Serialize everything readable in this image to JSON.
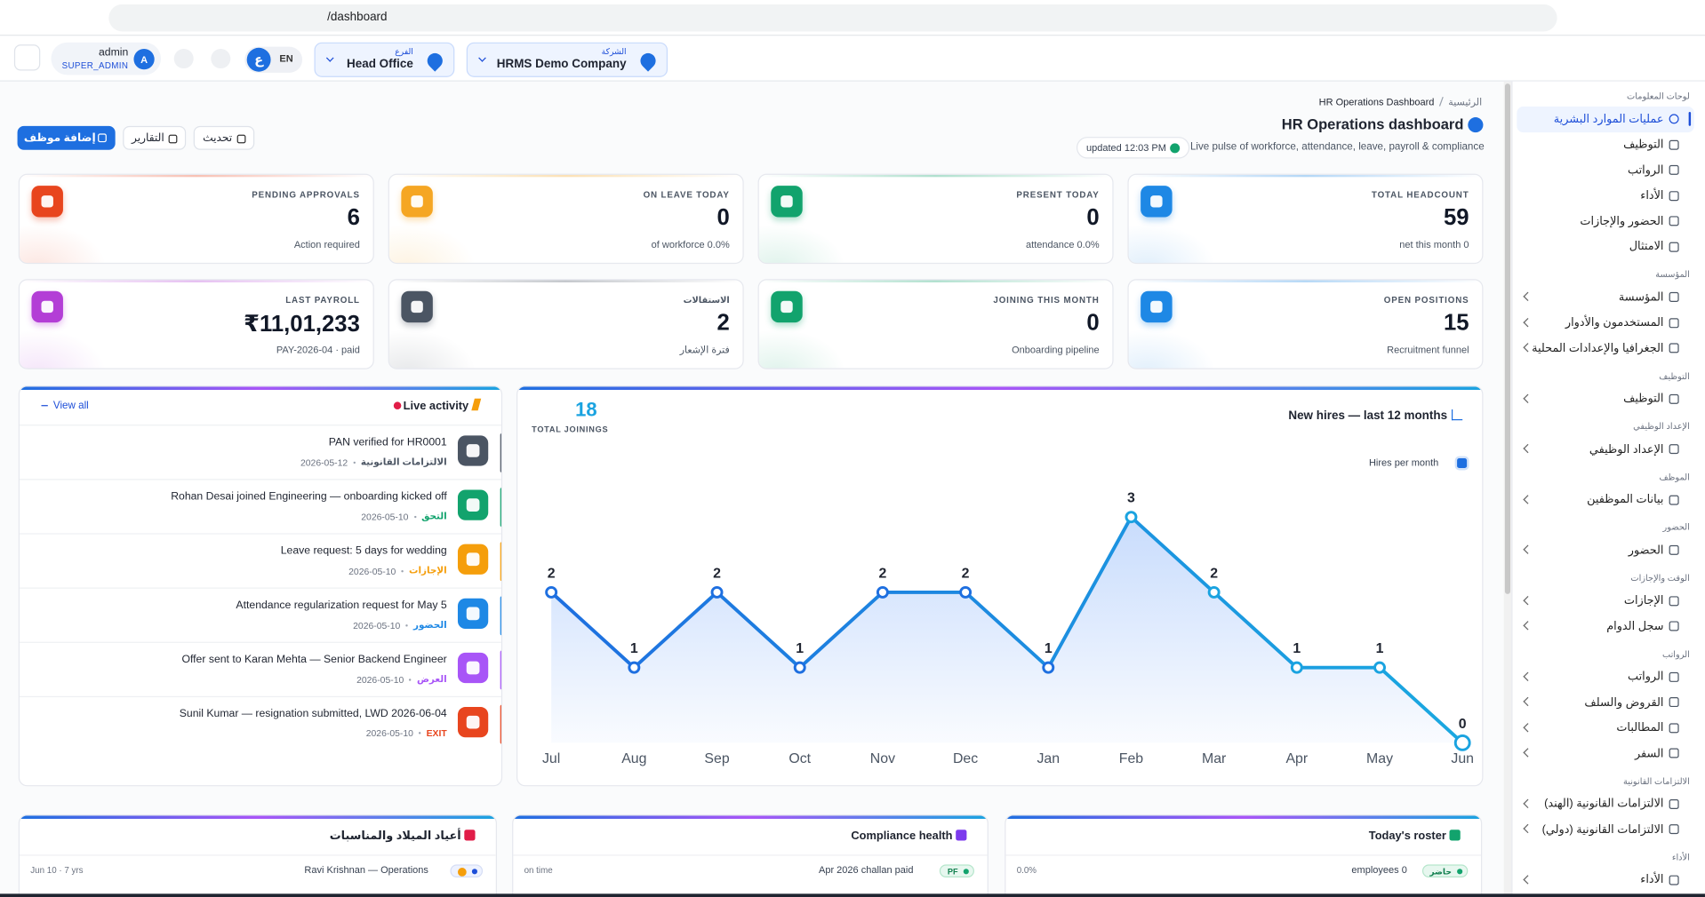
{
  "browser": {
    "url": "/dashboard"
  },
  "header": {
    "user": "admin",
    "role": "SUPER_ADMIN",
    "avatar": "A",
    "lang_ar": "ع",
    "lang_en": "EN",
    "branch": {
      "label": "الفرع",
      "value": "Head Office"
    },
    "company": {
      "label": "الشركة",
      "value": "HRMS Demo Company"
    }
  },
  "page": {
    "breadcrumb": [
      "الرئيسية",
      "HR Operations Dashboard"
    ],
    "title": "HR Operations dashboard",
    "subtitle": "Live pulse of workforce, attendance, leave, payroll & compliance.",
    "updated": "updated 12:03 PM",
    "actions": [
      "إضافة موظف",
      "التقارير",
      "تحديث"
    ]
  },
  "kpis": [
    {
      "label": "TOTAL HEADCOUNT",
      "value": "59",
      "note": "net this month 0",
      "color": "#1e88e5"
    },
    {
      "label": "PRESENT TODAY",
      "value": "0",
      "note": "attendance 0.0%",
      "color": "#12a36d"
    },
    {
      "label": "ON LEAVE TODAY",
      "value": "0",
      "note": "of workforce 0.0%",
      "color": "#f5a623"
    },
    {
      "label": "PENDING APPROVALS",
      "value": "6",
      "note": "Action required",
      "color": "#e8451e"
    },
    {
      "label": "OPEN POSITIONS",
      "value": "15",
      "note": "Recruitment funnel",
      "color": "#1e88e5"
    },
    {
      "label": "JOINING THIS MONTH",
      "value": "0",
      "note": "Onboarding pipeline",
      "color": "#12a36d"
    },
    {
      "label": "الاستقالات",
      "value": "2",
      "note": "فترة الإشعار",
      "color": "#4b5563"
    },
    {
      "label": "LAST PAYROLL",
      "value": "₹11,01,233",
      "note": "PAY-2026-04 · paid",
      "color": "#b33ed6"
    }
  ],
  "activity": {
    "title": "Live activity",
    "view_all": "View all",
    "items": [
      {
        "title": "PAN verified for HR0001",
        "date": "2026-05-12",
        "tag": "الالتزامات القانونية",
        "color": "#4b5563"
      },
      {
        "title": "Rohan Desai joined Engineering — onboarding kicked off",
        "date": "2026-05-10",
        "tag": "التحق",
        "color": "#12a36d"
      },
      {
        "title": "Leave request: 5 days for wedding",
        "date": "2026-05-10",
        "tag": "الإجازات",
        "color": "#f59e0b"
      },
      {
        "title": "Attendance regularization request for May 5",
        "date": "2026-05-10",
        "tag": "الحضور",
        "color": "#1e88e5"
      },
      {
        "title": "Offer sent to Karan Mehta — Senior Backend Engineer",
        "date": "2026-05-10",
        "tag": "العرض",
        "color": "#a855f7"
      },
      {
        "title": "Sunil Kumar — resignation submitted, LWD 2026-06-04",
        "date": "2026-05-10",
        "tag": "EXIT",
        "color": "#e8451e"
      }
    ]
  },
  "chart_data": {
    "type": "line",
    "title": "New hires — last 12 months",
    "kpi_value": "18",
    "kpi_label": "TOTAL JOININGS",
    "categories": [
      "Jul",
      "Aug",
      "Sep",
      "Oct",
      "Nov",
      "Dec",
      "Jan",
      "Feb",
      "Mar",
      "Apr",
      "May",
      "Jun"
    ],
    "series": [
      {
        "name": "Hires per month",
        "color": "#1e6fe0",
        "values": [
          2,
          1,
          2,
          1,
          2,
          2,
          1,
          3,
          2,
          1,
          1,
          0
        ]
      }
    ],
    "ylim": [
      0,
      3.2
    ],
    "grid": false
  },
  "cards": [
    {
      "title": "أعياد الميلاد والمناسبات",
      "main": "Ravi Krishnan — Operations",
      "side": "Jun 10 · 7 yrs"
    },
    {
      "title": "Compliance health",
      "main": "Apr 2026 challan paid",
      "badge": "PF",
      "side": "on time"
    },
    {
      "title": "Today's roster",
      "main": "employees 0",
      "badge": "حاضر",
      "side": "0.0%"
    }
  ],
  "sidebar": [
    {
      "section": "لوحات المعلومات",
      "items": [
        {
          "label": "عمليات الموارد البشرية",
          "active": true
        },
        {
          "label": "التوظيف"
        },
        {
          "label": "الرواتب"
        },
        {
          "label": "الأداء"
        },
        {
          "label": "الحضور والإجازات"
        },
        {
          "label": "الامتثال"
        }
      ]
    },
    {
      "section": "المؤسسة",
      "items": [
        {
          "label": "المؤسسة",
          "expandable": true
        },
        {
          "label": "المستخدمون والأدوار",
          "expandable": true
        },
        {
          "label": "الجغرافيا والإعدادات المحلية",
          "expandable": true
        }
      ]
    },
    {
      "section": "التوظيف",
      "items": [
        {
          "label": "التوظيف",
          "expandable": true
        }
      ]
    },
    {
      "section": "الإعداد الوظيفي",
      "items": [
        {
          "label": "الإعداد الوظيفي",
          "expandable": true
        }
      ]
    },
    {
      "section": "الموظف",
      "items": [
        {
          "label": "بيانات الموظفين",
          "expandable": true
        }
      ]
    },
    {
      "section": "الحضور",
      "items": [
        {
          "label": "الحضور",
          "expandable": true
        }
      ]
    },
    {
      "section": "الوقت والإجازات",
      "items": [
        {
          "label": "الإجازات",
          "expandable": true
        },
        {
          "label": "سجل الدوام",
          "expandable": true
        }
      ]
    },
    {
      "section": "الرواتب",
      "items": [
        {
          "label": "الرواتب",
          "expandable": true
        },
        {
          "label": "القروض والسلف",
          "expandable": true
        },
        {
          "label": "المطالبات",
          "expandable": true
        },
        {
          "label": "السفر",
          "expandable": true
        }
      ]
    },
    {
      "section": "الالتزامات القانونية",
      "items": [
        {
          "label": "الالتزامات القانونية (الهند)",
          "expandable": true
        },
        {
          "label": "الالتزامات القانونية (دولي)",
          "expandable": true
        }
      ]
    },
    {
      "section": "الأداء",
      "items": [
        {
          "label": "الأداء",
          "expandable": true
        }
      ]
    }
  ]
}
